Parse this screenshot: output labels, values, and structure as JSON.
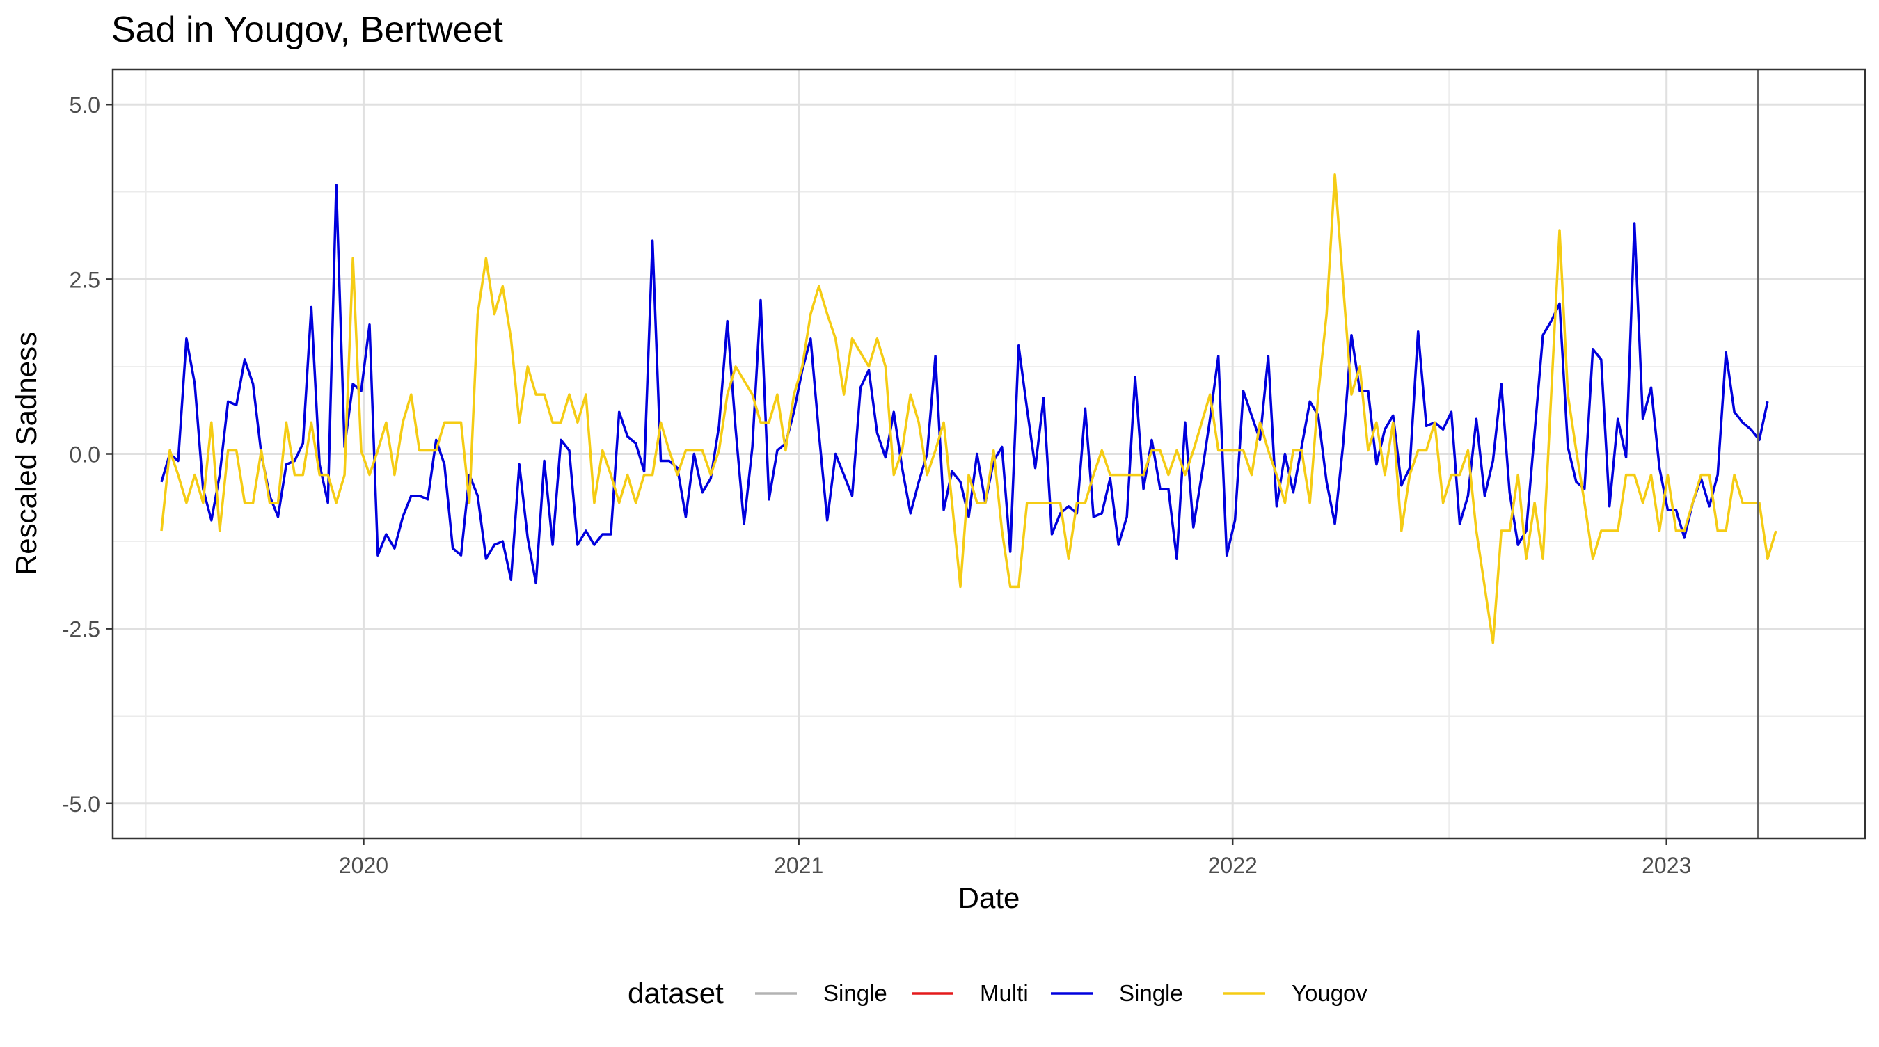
{
  "chart_data": {
    "type": "line",
    "title": "Sad in Yougov, Bertweet",
    "xlabel": "Date",
    "ylabel": "Rescaled Sadness",
    "xlim": [
      "2019-06-04",
      "2023-06-17"
    ],
    "ylim": [
      -5.5,
      5.5
    ],
    "x_ticks": [
      {
        "label": "2020",
        "date": "2020-01-01"
      },
      {
        "label": "2021",
        "date": "2021-01-01"
      },
      {
        "label": "2022",
        "date": "2022-01-01"
      },
      {
        "label": "2023",
        "date": "2023-01-01"
      }
    ],
    "y_ticks": [
      {
        "label": "5.0",
        "value": 5.0
      },
      {
        "label": "2.5",
        "value": 2.5
      },
      {
        "label": "0.0",
        "value": 0.0
      },
      {
        "label": "-2.5",
        "value": -2.5
      },
      {
        "label": "-5.0",
        "value": -5.0
      }
    ],
    "grid": true,
    "vline": {
      "date": "2023-03-19",
      "color": "#666666"
    },
    "legend": {
      "title": "dataset",
      "position": "bottom",
      "items": [
        {
          "label": "Single",
          "color": "#b3b3b3"
        },
        {
          "label": "Multi",
          "color": "#e41a1c"
        },
        {
          "label": "Single",
          "color": "#0000dd"
        },
        {
          "label": "Yougov",
          "color": "#f5cc14"
        }
      ]
    },
    "series": [
      {
        "name": "Single",
        "color": "#0000dd",
        "x_start": "2019-07-15",
        "x_step_days": 7,
        "values": [
          -0.4,
          0.0,
          -0.1,
          1.65,
          1.0,
          -0.5,
          -0.95,
          -0.3,
          0.75,
          0.7,
          1.35,
          1.0,
          0.0,
          -0.6,
          -0.9,
          -0.15,
          -0.1,
          0.15,
          2.1,
          -0.15,
          -0.7,
          3.85,
          0.1,
          1.0,
          0.9,
          1.85,
          -1.45,
          -1.15,
          -1.35,
          -0.9,
          -0.6,
          -0.6,
          -0.65,
          0.2,
          -0.15,
          -1.35,
          -1.45,
          -0.3,
          -0.6,
          -1.5,
          -1.3,
          -1.25,
          -1.8,
          -0.15,
          -1.2,
          -1.85,
          -0.1,
          -1.3,
          0.2,
          0.05,
          -1.3,
          -1.1,
          -1.3,
          -1.15,
          -1.15,
          0.6,
          0.25,
          0.15,
          -0.25,
          3.05,
          -0.1,
          -0.1,
          -0.2,
          -0.9,
          0.0,
          -0.55,
          -0.35,
          0.4,
          1.9,
          0.35,
          -1.0,
          0.1,
          2.2,
          -0.65,
          0.05,
          0.15,
          0.6,
          1.2,
          1.65,
          0.3,
          -0.95,
          0.0,
          -0.3,
          -0.6,
          0.95,
          1.2,
          0.3,
          -0.05,
          0.6,
          -0.2,
          -0.85,
          -0.4,
          0.0,
          1.4,
          -0.8,
          -0.25,
          -0.4,
          -0.9,
          0.0,
          -0.7,
          -0.1,
          0.1,
          -1.4,
          1.55,
          0.65,
          -0.2,
          0.8,
          -1.15,
          -0.85,
          -0.75,
          -0.85,
          0.65,
          -0.9,
          -0.85,
          -0.35,
          -1.3,
          -0.9,
          1.1,
          -0.5,
          0.2,
          -0.5,
          -0.5,
          -1.5,
          0.45,
          -1.05,
          -0.3,
          0.5,
          1.4,
          -1.45,
          -0.95,
          0.9,
          0.55,
          0.2,
          1.4,
          -0.75,
          0.0,
          -0.55,
          0.1,
          0.75,
          0.55,
          -0.4,
          -1.0,
          0.15,
          1.7,
          0.9,
          0.9,
          -0.15,
          0.35,
          0.55,
          -0.45,
          -0.2,
          1.75,
          0.4,
          0.45,
          0.35,
          0.6,
          -1.0,
          -0.6,
          0.5,
          -0.6,
          -0.1,
          1.0,
          -0.55,
          -1.3,
          -1.1,
          0.3,
          1.7,
          1.9,
          2.15,
          0.1,
          -0.4,
          -0.5,
          1.5,
          1.35,
          -0.75,
          0.5,
          -0.05,
          3.3,
          0.5,
          0.95,
          -0.2,
          -0.8,
          -0.8,
          -1.2,
          -0.7,
          -0.35,
          -0.75,
          -0.3,
          1.45,
          0.6,
          0.45,
          0.35,
          0.2,
          0.75
        ]
      },
      {
        "name": "Yougov",
        "color": "#f5cc14",
        "x_start": "2019-07-15",
        "x_step_days": 7,
        "values": [
          -1.1,
          0.05,
          -0.3,
          -0.7,
          -0.3,
          -0.7,
          0.45,
          -1.1,
          0.05,
          0.05,
          -0.7,
          -0.7,
          0.05,
          -0.7,
          -0.7,
          0.45,
          -0.3,
          -0.3,
          0.45,
          -0.3,
          -0.3,
          -0.7,
          -0.3,
          2.8,
          0.05,
          -0.3,
          0.05,
          0.45,
          -0.3,
          0.45,
          0.85,
          0.05,
          0.05,
          0.05,
          0.45,
          0.45,
          0.45,
          -0.7,
          2.0,
          2.8,
          2.0,
          2.4,
          1.65,
          0.45,
          1.25,
          0.85,
          0.85,
          0.45,
          0.45,
          0.85,
          0.45,
          0.85,
          -0.7,
          0.05,
          -0.3,
          -0.7,
          -0.3,
          -0.7,
          -0.3,
          -0.3,
          0.45,
          0.05,
          -0.3,
          0.05,
          0.05,
          0.05,
          -0.3,
          0.05,
          0.85,
          1.25,
          1.05,
          0.85,
          0.45,
          0.45,
          0.85,
          0.05,
          0.85,
          1.25,
          2.0,
          2.4,
          2.0,
          1.65,
          0.85,
          1.65,
          1.45,
          1.25,
          1.65,
          1.25,
          -0.3,
          0.05,
          0.85,
          0.45,
          -0.3,
          0.05,
          0.45,
          -0.7,
          -1.9,
          -0.3,
          -0.7,
          -0.7,
          0.05,
          -1.1,
          -1.9,
          -1.9,
          -0.7,
          -0.7,
          -0.7,
          -0.7,
          -0.7,
          -1.5,
          -0.7,
          -0.7,
          -0.3,
          0.05,
          -0.3,
          -0.3,
          -0.3,
          -0.3,
          -0.3,
          0.05,
          0.05,
          -0.3,
          0.05,
          -0.3,
          0.05,
          0.45,
          0.85,
          0.05,
          0.05,
          0.05,
          0.05,
          -0.3,
          0.45,
          0.05,
          -0.3,
          -0.7,
          0.05,
          0.05,
          -0.7,
          0.85,
          2.0,
          4.0,
          2.4,
          0.85,
          1.25,
          0.05,
          0.45,
          -0.3,
          0.45,
          -1.1,
          -0.3,
          0.05,
          0.05,
          0.45,
          -0.7,
          -0.3,
          -0.3,
          0.05,
          -1.1,
          -1.9,
          -2.7,
          -1.1,
          -1.1,
          -0.3,
          -1.5,
          -0.7,
          -1.5,
          0.85,
          3.2,
          0.85,
          0.05,
          -0.7,
          -1.5,
          -1.1,
          -1.1,
          -1.1,
          -0.3,
          -0.3,
          -0.7,
          -0.3,
          -1.1,
          -0.3,
          -1.1,
          -1.1,
          -0.7,
          -0.3,
          -0.3,
          -1.1,
          -1.1,
          -0.3,
          -0.7,
          -0.7,
          -0.7,
          -1.5,
          -1.1
        ]
      }
    ]
  }
}
